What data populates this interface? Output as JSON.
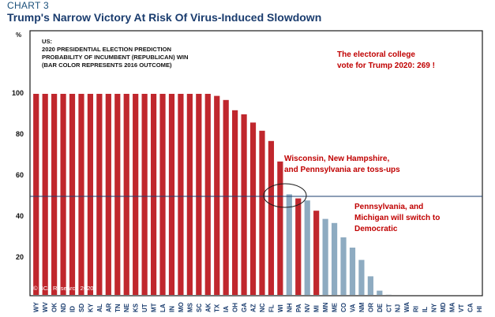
{
  "header": {
    "label": "CHART 3",
    "title": "Trump's Narrow Victory At Risk Of Virus-Induced Slowdown"
  },
  "colors": {
    "trump_2016": "#c0272d",
    "clinton_2016": "#8eabc1",
    "frame": "#1a1a1a",
    "annotation": "#c00000",
    "title": "#1a3c6e"
  },
  "chart_data": {
    "type": "bar",
    "title": "Trump's Narrow Victory At Risk Of Virus-Induced Slowdown",
    "unit": "%",
    "subtitle": [
      "US:",
      "2020 PRESIDENTIAL ELECTION PREDICTION",
      "PROBABILITY OF INCUMBENT (REPUBLICAN) WIN",
      "(BAR COLOR REPRESENTS 2016 OUTCOME)"
    ],
    "yticks": [
      20,
      40,
      60,
      80,
      100
    ],
    "ylim": [
      0,
      110
    ],
    "reference_line": 50,
    "grid": false,
    "categories": [
      "WY",
      "WV",
      "OK",
      "ND",
      "ID",
      "SD",
      "KY",
      "AL",
      "AR",
      "TN",
      "NE",
      "KS",
      "UT",
      "MT",
      "LA",
      "IN",
      "MO",
      "MS",
      "SC",
      "AK",
      "TX",
      "IA",
      "OH",
      "GA",
      "AZ",
      "NC",
      "FL",
      "WI",
      "NH",
      "PA",
      "NV",
      "MI",
      "MN",
      "ME",
      "CO",
      "VA",
      "NM",
      "OR",
      "DE",
      "CT",
      "NJ",
      "WA",
      "RI",
      "IL",
      "NY",
      "MD",
      "MA",
      "VT",
      "CA",
      "HI"
    ],
    "values": [
      100,
      100,
      100,
      100,
      100,
      100,
      100,
      100,
      100,
      100,
      100,
      100,
      100,
      100,
      100,
      100,
      100,
      100,
      100,
      100,
      99,
      97,
      92,
      90,
      86,
      82,
      77,
      67,
      51,
      49,
      48,
      43,
      39,
      37,
      30,
      25,
      19,
      11,
      4,
      2,
      1,
      0.5,
      0.2,
      0,
      0,
      0,
      0,
      0,
      0,
      0
    ],
    "outcome_2016": [
      "R",
      "R",
      "R",
      "R",
      "R",
      "R",
      "R",
      "R",
      "R",
      "R",
      "R",
      "R",
      "R",
      "R",
      "R",
      "R",
      "R",
      "R",
      "R",
      "R",
      "R",
      "R",
      "R",
      "R",
      "R",
      "R",
      "R",
      "R",
      "D",
      "R",
      "D",
      "R",
      "D",
      "D",
      "D",
      "D",
      "D",
      "D",
      "D",
      "D",
      "D",
      "D",
      "D",
      "D",
      "D",
      "D",
      "D",
      "D",
      "D",
      "D"
    ],
    "annotations": [
      {
        "lines": [
          "The electoral college",
          "vote for Trump 2020: 269   !"
        ]
      },
      {
        "lines": [
          "Wisconsin, New Hampshire,",
          "and Pennsylvania are toss-ups"
        ]
      },
      {
        "lines": [
          "Pennsylvania, and",
          "Michigan will switch to",
          "Democratic"
        ]
      }
    ],
    "source": "© BCA Research 2020"
  }
}
